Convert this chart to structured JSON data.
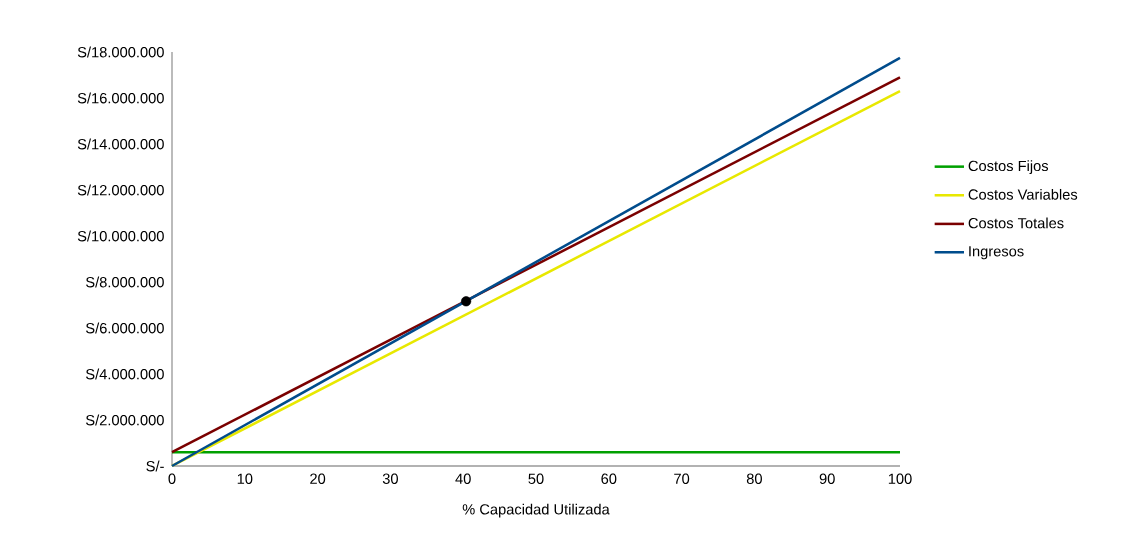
{
  "chart_data": {
    "type": "line",
    "xlabel": "% Capacidad Utilizada",
    "xlim": [
      0,
      100
    ],
    "xticks": [
      0,
      10,
      20,
      30,
      40,
      50,
      60,
      70,
      80,
      90,
      100
    ],
    "ylim": [
      0,
      18000000
    ],
    "yticks": [
      {
        "value": 0,
        "label": "S/-"
      },
      {
        "value": 2000000,
        "label": "S/2.000.000"
      },
      {
        "value": 4000000,
        "label": "S/4.000.000"
      },
      {
        "value": 6000000,
        "label": "S/6.000.000"
      },
      {
        "value": 8000000,
        "label": "S/8.000.000"
      },
      {
        "value": 10000000,
        "label": "S/10.000.000"
      },
      {
        "value": 12000000,
        "label": "S/12.000.000"
      },
      {
        "value": 14000000,
        "label": "S/14.000.000"
      },
      {
        "value": 16000000,
        "label": "S/16.000.000"
      },
      {
        "value": 18000000,
        "label": "S/18.000.000"
      }
    ],
    "grid": false,
    "legend": "right",
    "series": [
      {
        "name": "Costos Fijos",
        "color": "#00a000",
        "x": [
          0,
          100
        ],
        "values": [
          600000,
          600000
        ]
      },
      {
        "name": "Costos Variables",
        "color": "#e8e800",
        "x": [
          0,
          100
        ],
        "values": [
          0,
          16300000
        ]
      },
      {
        "name": "Costos Totales",
        "color": "#7a0000",
        "x": [
          0,
          100
        ],
        "values": [
          600000,
          16900000
        ]
      },
      {
        "name": "Ingresos",
        "color": "#004c8c",
        "x": [
          0,
          100
        ],
        "values": [
          0,
          17740000
        ]
      },
      {
        "type": "scatter",
        "marker": "circle",
        "color": "#000000",
        "x": [
          40.4
        ],
        "values": [
          7160000
        ]
      }
    ]
  }
}
